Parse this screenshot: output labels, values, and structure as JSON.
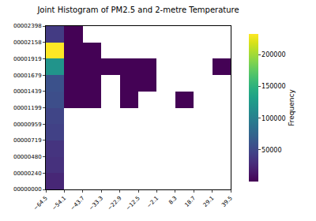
{
  "chart_data": {
    "type": "heatmap",
    "title": "Joint Histogram of PM2.5 and 2-metre Temperature",
    "x_bins": [
      -64.5,
      -54.1,
      -43.7,
      -33.3,
      -22.9,
      -12.5,
      -2.1,
      8.3,
      18.7,
      29.1,
      39.5
    ],
    "y_bins": [
      0,
      240,
      480,
      719,
      959,
      1199,
      1439,
      1679,
      1919,
      2158,
      2398
    ],
    "z": [
      [
        25000,
        null,
        null,
        null,
        null,
        null,
        null,
        null,
        null,
        null
      ],
      [
        32000,
        null,
        null,
        null,
        null,
        null,
        null,
        null,
        null,
        null
      ],
      [
        35000,
        null,
        null,
        null,
        null,
        null,
        null,
        null,
        null,
        null
      ],
      [
        45000,
        null,
        null,
        null,
        null,
        null,
        null,
        null,
        null,
        null
      ],
      [
        48000,
        null,
        null,
        null,
        null,
        null,
        null,
        null,
        null,
        null
      ],
      [
        55000,
        500,
        500,
        null,
        500,
        null,
        null,
        500,
        null,
        null
      ],
      [
        58000,
        500,
        500,
        null,
        500,
        500,
        null,
        null,
        null,
        null
      ],
      [
        120000,
        500,
        500,
        500,
        500,
        500,
        null,
        null,
        null,
        500
      ],
      [
        233000,
        500,
        500,
        null,
        null,
        null,
        null,
        null,
        null,
        null
      ],
      [
        40000,
        500,
        null,
        null,
        null,
        null,
        null,
        null,
        null,
        null
      ]
    ],
    "color": "Viridis",
    "xlim": [
      -64.5,
      39.5
    ],
    "ylim": [
      0,
      2398
    ],
    "xticks": [
      {
        "value": -64.5,
        "label": "−64.5"
      },
      {
        "value": -54.1,
        "label": "−54.1"
      },
      {
        "value": -43.7,
        "label": "−43.7"
      },
      {
        "value": -33.3,
        "label": "−33.3"
      },
      {
        "value": -22.9,
        "label": "−22.9"
      },
      {
        "value": -12.5,
        "label": "−12.5"
      },
      {
        "value": -2.1,
        "label": "−2.1"
      },
      8.3,
      18.7,
      29.1,
      39.5
    ],
    "yticks": [
      {
        "value": 0,
        "label": "00000000"
      },
      {
        "value": 240,
        "label": "00000240"
      },
      {
        "value": 480,
        "label": "00000480"
      },
      {
        "value": 719,
        "label": "00000719"
      },
      {
        "value": 959,
        "label": "00000959"
      },
      {
        "value": 1199,
        "label": "00001199"
      },
      {
        "value": 1439,
        "label": "00001439"
      },
      {
        "value": 1679,
        "label": "00001679"
      },
      {
        "value": 1919,
        "label": "00001919"
      },
      {
        "value": 2158,
        "label": "00002158"
      },
      {
        "value": 2398,
        "label": "00002398"
      }
    ],
    "colorbar": {
      "title": "Frequency",
      "range": [
        0,
        233000
      ],
      "ticks": [
        50000,
        100000,
        150000,
        200000
      ]
    }
  }
}
